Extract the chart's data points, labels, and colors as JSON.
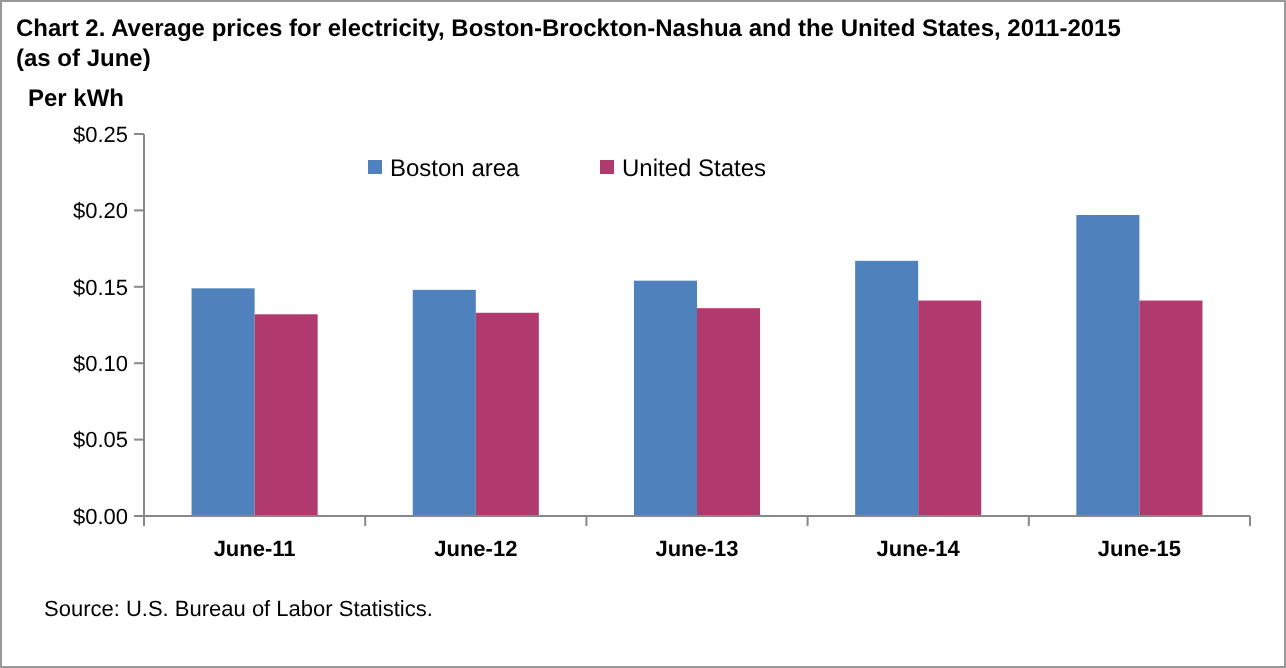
{
  "chart_data": {
    "type": "bar",
    "title": "Chart 2. Average prices for electricity, Boston-Brockton-Nashua  and the United  States, 2011-2015 (as of June)",
    "ylabel": "Per kWh",
    "categories": [
      "June-11",
      "June-12",
      "June-13",
      "June-14",
      "June-15"
    ],
    "series": [
      {
        "name": "Boston area",
        "color": "#4f81bd",
        "values": [
          0.149,
          0.148,
          0.154,
          0.167,
          0.197
        ]
      },
      {
        "name": "United States",
        "color": "#b03a6e",
        "values": [
          0.132,
          0.133,
          0.136,
          0.141,
          0.141
        ]
      }
    ],
    "ylim": [
      0,
      0.25
    ],
    "yticks": [
      {
        "value": 0,
        "label": "$0.00"
      },
      {
        "value": 0.05,
        "label": "$0.05"
      },
      {
        "value": 0.1,
        "label": "$0.10"
      },
      {
        "value": 0.15,
        "label": "$0.15"
      },
      {
        "value": 0.2,
        "label": "$0.20"
      },
      {
        "value": 0.25,
        "label": "$0.25"
      }
    ],
    "legend": "top",
    "annotations": [
      "Source: U.S. Bureau of Labor Statistics."
    ]
  }
}
